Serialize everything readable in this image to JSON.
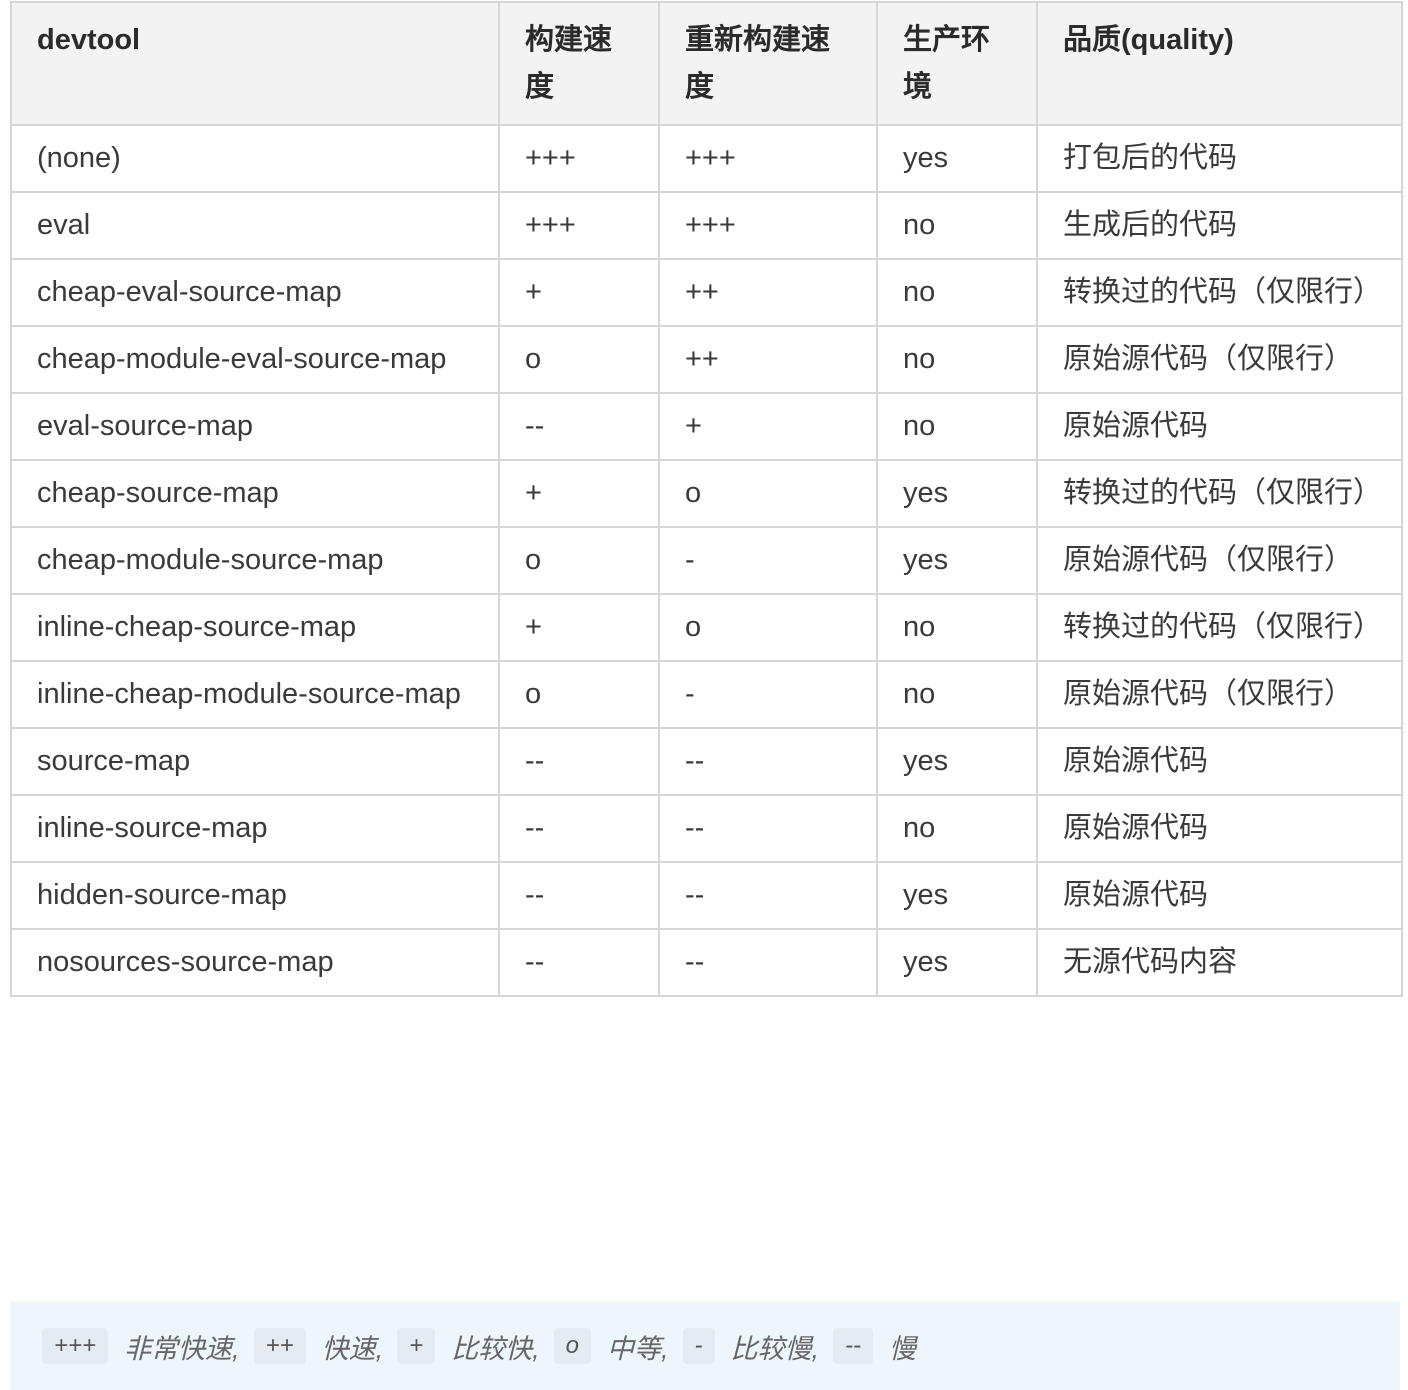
{
  "table": {
    "headers": [
      "devtool",
      "构建速度",
      "重新构建速度",
      "生产环境",
      "品质(quality)"
    ],
    "rows": [
      [
        "(none)",
        "+++",
        "+++",
        "yes",
        "打包后的代码"
      ],
      [
        "eval",
        "+++",
        "+++",
        "no",
        "生成后的代码"
      ],
      [
        "cheap-eval-source-map",
        "+",
        "++",
        "no",
        "转换过的代码（仅限行）"
      ],
      [
        "cheap-module-eval-source-map",
        "o",
        "++",
        "no",
        "原始源代码（仅限行）"
      ],
      [
        "eval-source-map",
        "--",
        "+",
        "no",
        "原始源代码"
      ],
      [
        "cheap-source-map",
        "+",
        "o",
        "yes",
        "转换过的代码（仅限行）"
      ],
      [
        "cheap-module-source-map",
        "o",
        "-",
        "yes",
        "原始源代码（仅限行）"
      ],
      [
        "inline-cheap-source-map",
        "+",
        "o",
        "no",
        "转换过的代码（仅限行）"
      ],
      [
        "inline-cheap-module-source-map",
        "o",
        "-",
        "no",
        "原始源代码（仅限行）"
      ],
      [
        "source-map",
        "--",
        "--",
        "yes",
        "原始源代码"
      ],
      [
        "inline-source-map",
        "--",
        "--",
        "no",
        "原始源代码"
      ],
      [
        "hidden-source-map",
        "--",
        "--",
        "yes",
        "原始源代码"
      ],
      [
        "nosources-source-map",
        "--",
        "--",
        "yes",
        "无源代码内容"
      ]
    ]
  },
  "legend": [
    {
      "code": "+++",
      "label": "非常快速,"
    },
    {
      "code": "++",
      "label": "快速,"
    },
    {
      "code": "+",
      "label": "比较快,"
    },
    {
      "code": "o",
      "label": "中等,"
    },
    {
      "code": "-",
      "label": "比较慢,"
    },
    {
      "code": "--",
      "label": "慢"
    }
  ]
}
